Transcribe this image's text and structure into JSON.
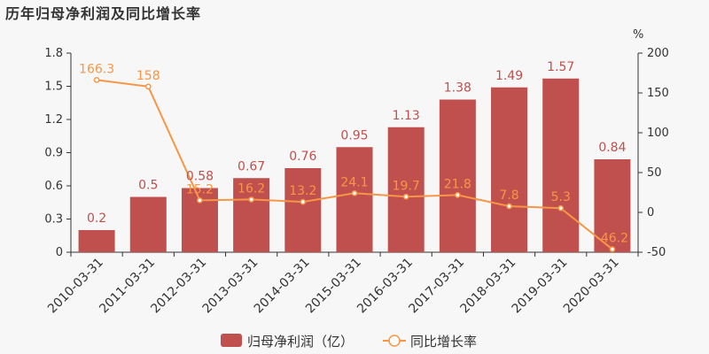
{
  "title": "历年归母净利润及同比增长率",
  "chart_data": {
    "type": "bar",
    "categories": [
      "2010-03-31",
      "2011-03-31",
      "2012-03-31",
      "2013-03-31",
      "2014-03-31",
      "2015-03-31",
      "2016-03-31",
      "2017-03-31",
      "2018-03-31",
      "2019-03-31",
      "2020-03-31"
    ],
    "series": [
      {
        "name": "归母净利润（亿）",
        "type": "bar",
        "axis": "left",
        "color": "#c0504d",
        "values": [
          0.2,
          0.5,
          0.58,
          0.67,
          0.76,
          0.95,
          1.13,
          1.38,
          1.49,
          1.57,
          0.84
        ]
      },
      {
        "name": "同比增长率",
        "type": "line",
        "axis": "right",
        "color": "#f79646",
        "values": [
          166.3,
          158,
          15.2,
          16.2,
          13.2,
          24.1,
          19.7,
          21.8,
          7.8,
          5.3,
          -46.2
        ]
      }
    ],
    "y_left": {
      "ticks": [
        "0",
        "0.3",
        "0.6",
        "0.9",
        "1.2",
        "1.5",
        "1.8"
      ],
      "ylim": [
        0,
        1.8
      ]
    },
    "y_right": {
      "unit": "%",
      "ticks": [
        "-50",
        "0",
        "50",
        "100",
        "150",
        "200"
      ],
      "ylim": [
        -50,
        200
      ]
    },
    "legend_position": "bottom-center",
    "grid": false
  }
}
